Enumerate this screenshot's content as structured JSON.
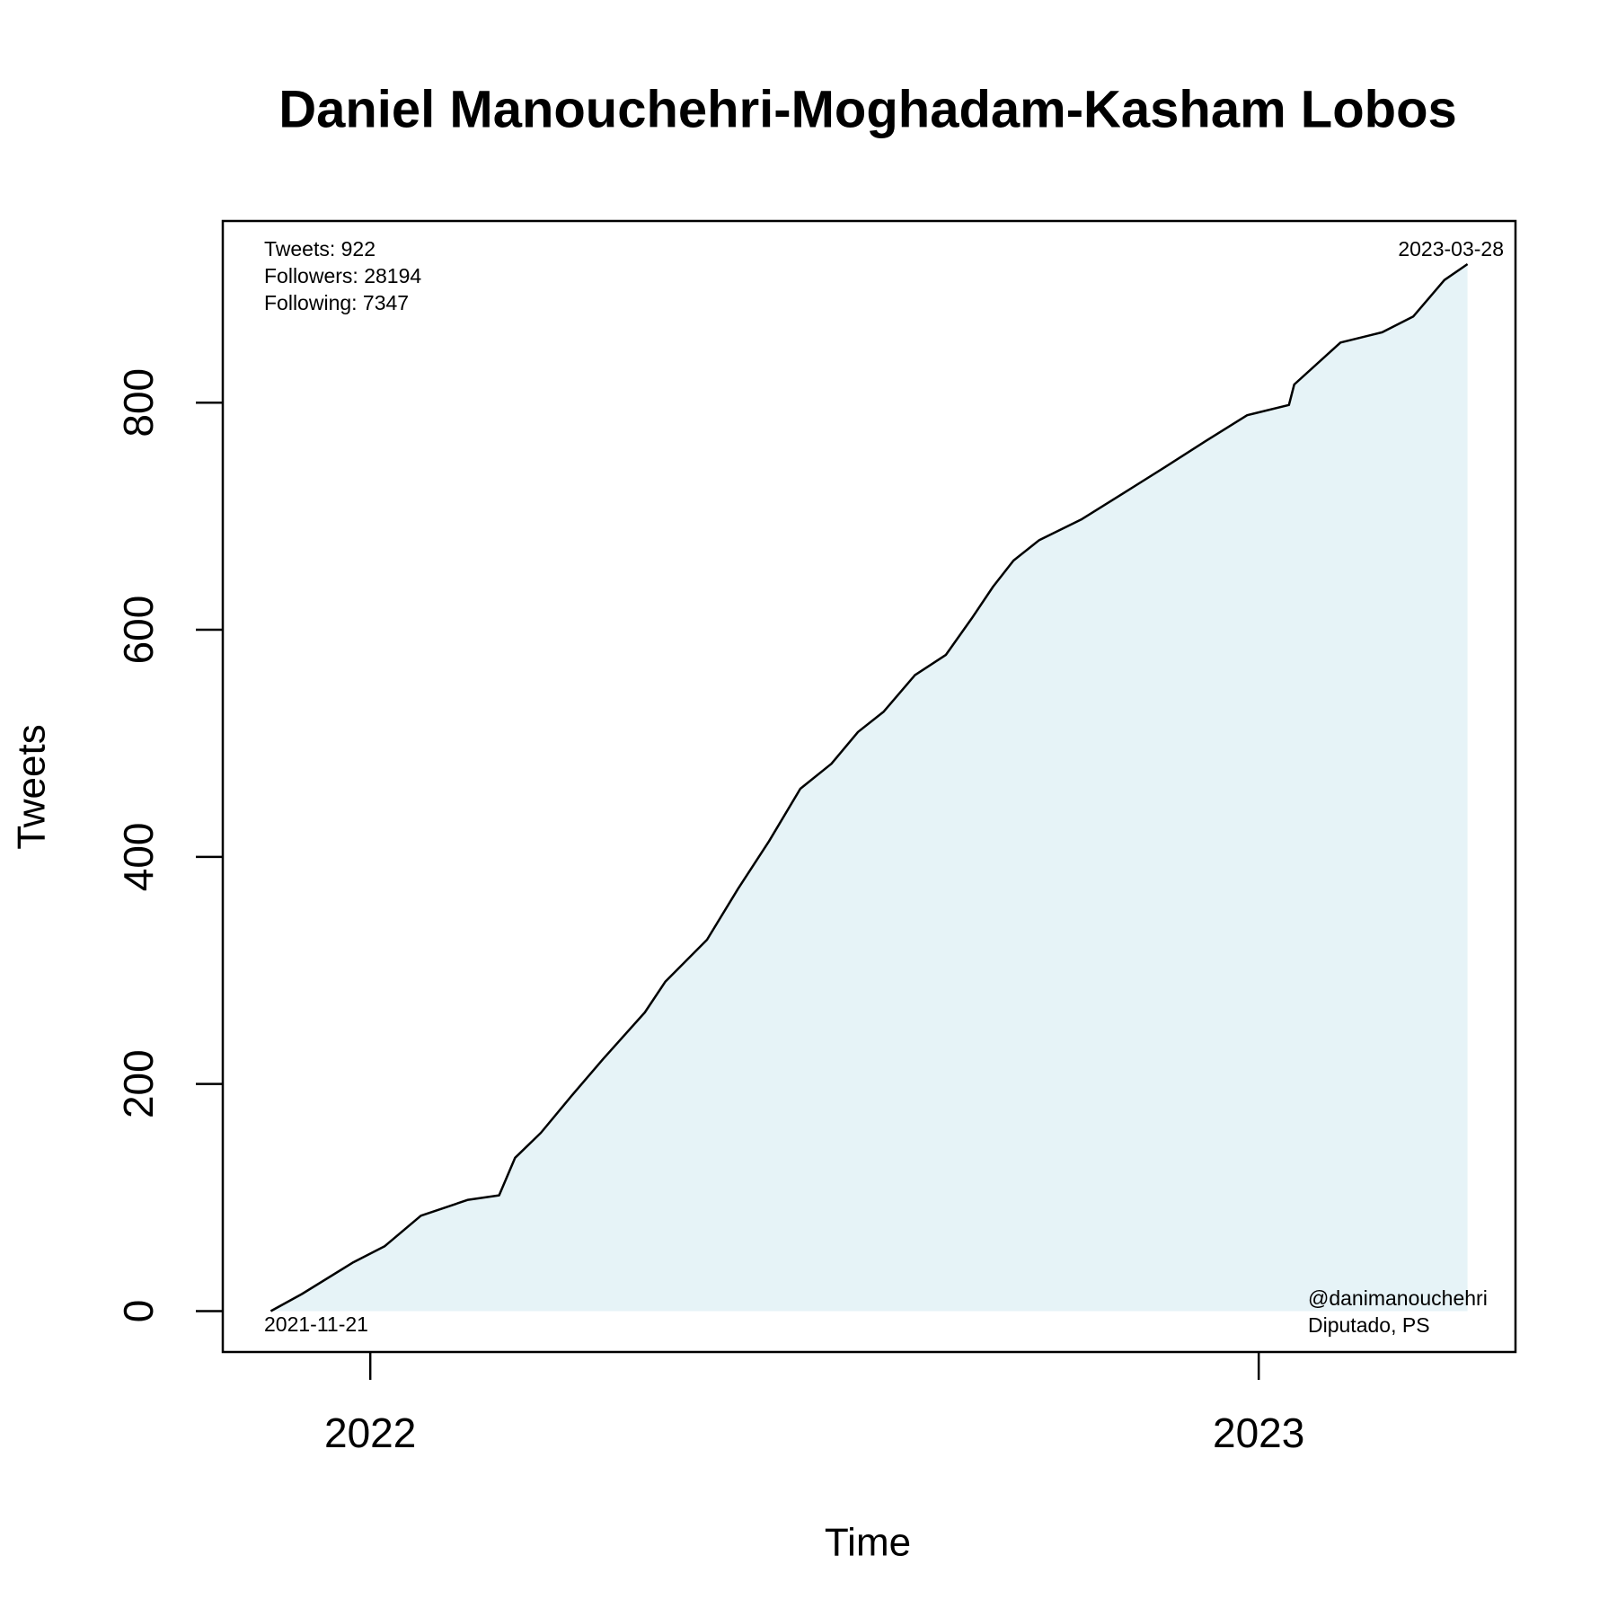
{
  "chart_data": {
    "type": "line",
    "title": "Daniel Manouchehri-Moghadam-Kasham Lobos",
    "x_label": "Time",
    "y_label": "Tweets",
    "annotations": [
      "Tweets: 922",
      "Followers: 28194",
      "Following: 7347",
      "2023-03-28",
      "2021-11-21",
      "@danimanouchehri",
      "Diputado, PS"
    ],
    "x": [
      2021.888,
      2021.923,
      2021.981,
      2022.016,
      2022.057,
      2022.11,
      2022.145,
      2022.163,
      2022.192,
      2022.227,
      2022.262,
      2022.309,
      2022.332,
      2022.379,
      2022.414,
      2022.449,
      2022.484,
      2022.519,
      2022.549,
      2022.578,
      2022.613,
      2022.648,
      2022.677,
      2022.701,
      2022.724,
      2022.753,
      2022.8,
      2022.847,
      2022.894,
      2022.94,
      2022.987,
      2023.034,
      2023.04,
      2023.092,
      2023.139,
      2023.174,
      2023.209,
      2023.235
    ],
    "values": [
      0,
      15,
      43,
      57,
      84,
      98,
      102,
      135,
      157,
      190,
      222,
      263,
      290,
      327,
      372,
      414,
      460,
      482,
      510,
      528,
      560,
      578,
      610,
      638,
      661,
      679,
      697,
      720,
      743,
      766,
      789,
      798,
      816,
      853,
      862,
      876,
      908,
      922
    ],
    "color": "#000000",
    "fill_color": "#e6f3f7",
    "xlim": [
      2021.834,
      2023.289
    ],
    "xticks": [
      2022,
      2023
    ],
    "ylim": [
      -36,
      960
    ],
    "yticks": [
      0,
      200,
      400,
      600,
      800
    ]
  }
}
